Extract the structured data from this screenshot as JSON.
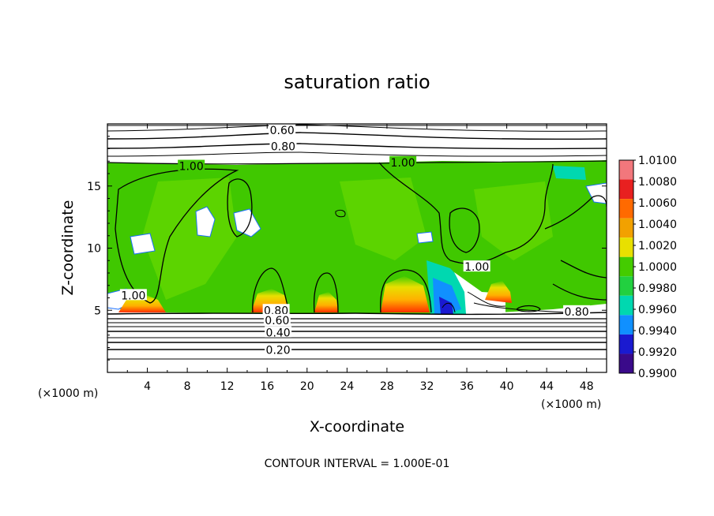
{
  "chart_data": {
    "type": "heatmap",
    "title": "saturation ratio",
    "xlabel": "X-coordinate",
    "ylabel": "Z-coordinate",
    "x_unit_left": "(×1000 m)",
    "x_unit_right": "(×1000 m)",
    "footer": "CONTOUR INTERVAL = 1.000E-01",
    "xlim": [
      0,
      50
    ],
    "ylim": [
      0,
      20
    ],
    "x_ticks": [
      4,
      8,
      12,
      16,
      20,
      24,
      28,
      32,
      36,
      40,
      44,
      48
    ],
    "x_tick_labels": [
      "4",
      "8",
      "12",
      "16",
      "20",
      "24",
      "28",
      "32",
      "36",
      "40",
      "44",
      "48"
    ],
    "y_ticks": [
      5,
      10,
      15
    ],
    "y_tick_labels": [
      "5",
      "10",
      "15"
    ],
    "colorbar": {
      "levels": [
        "1.0100",
        "1.0080",
        "1.0060",
        "1.0040",
        "1.0020",
        "1.0000",
        "0.9980",
        "0.9960",
        "0.9940",
        "0.9920",
        "0.9900"
      ],
      "colors": [
        "#f2777c",
        "#e82020",
        "#ff6a00",
        "#f2a100",
        "#e8e000",
        "#44cc00",
        "#22d040",
        "#00d8b0",
        "#1090ff",
        "#1a1ad0",
        "#3a0a8a"
      ]
    },
    "contour_labels": [
      {
        "text": "0.60",
        "x": 17.5,
        "z": 19.5
      },
      {
        "text": "0.80",
        "x": 17.6,
        "z": 18.2
      },
      {
        "text": "1.00",
        "x": 8.4,
        "z": 16.6
      },
      {
        "text": "1.00",
        "x": 29.6,
        "z": 16.9
      },
      {
        "text": "1.00",
        "x": 37.0,
        "z": 8.5
      },
      {
        "text": "1.00",
        "x": 2.6,
        "z": 6.2
      },
      {
        "text": "0.80",
        "x": 16.9,
        "z": 5.0
      },
      {
        "text": "0.60",
        "x": 17.0,
        "z": 4.2
      },
      {
        "text": "0.40",
        "x": 17.1,
        "z": 3.2
      },
      {
        "text": "0.20",
        "x": 17.1,
        "z": 1.8
      },
      {
        "text": "0.80",
        "x": 47.0,
        "z": 4.9
      }
    ]
  }
}
